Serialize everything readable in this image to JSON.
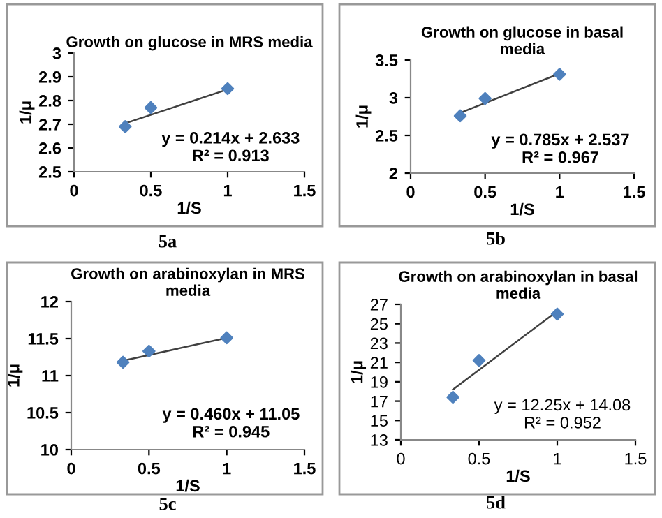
{
  "chart_data": [
    {
      "type": "scatter",
      "title": "Growth on glucose in MRS media",
      "xlabel": "1/S",
      "ylabel": "1/μ",
      "xlim": [
        0,
        1.5
      ],
      "xticks": [
        0,
        0.5,
        1,
        1.5
      ],
      "ylim": [
        2.5,
        3
      ],
      "yticks": [
        2.5,
        2.6,
        2.7,
        2.8,
        2.9,
        3
      ],
      "grid": false,
      "series": [
        {
          "marker": "diamond",
          "color": "#4f81bd",
          "x": [
            0.333,
            0.5,
            1
          ],
          "values": [
            2.69,
            2.77,
            2.85
          ]
        },
        {
          "type": "line",
          "marker": "none",
          "color": "#404040",
          "x": [
            0.333,
            1
          ],
          "values": [
            2.704,
            2.847
          ]
        }
      ],
      "annotations": [
        "y = 0.214x + 2.633\nR² = 0.913",
        "5a"
      ]
    },
    {
      "type": "scatter",
      "title": "Growth on glucose in basal\nmedia",
      "xlabel": "1/S",
      "ylabel": "1/μ",
      "xlim": [
        0,
        1.5
      ],
      "xticks": [
        0,
        0.5,
        1,
        1.5
      ],
      "ylim": [
        2,
        3.5
      ],
      "yticks": [
        2,
        2.5,
        3,
        3.5
      ],
      "grid": false,
      "series": [
        {
          "marker": "diamond",
          "color": "#4f81bd",
          "x": [
            0.333,
            0.5,
            1
          ],
          "values": [
            2.76,
            2.99,
            3.31
          ]
        },
        {
          "type": "line",
          "marker": "none",
          "color": "#404040",
          "x": [
            0.333,
            1
          ],
          "values": [
            2.8,
            3.32
          ]
        }
      ],
      "annotations": [
        "y = 0.785x + 2.537\nR² = 0.967",
        "5b"
      ]
    },
    {
      "type": "scatter",
      "title": "Growth on arabinoxylan in MRS\nmedia",
      "xlabel": "1/S",
      "ylabel": "1/μ",
      "xlim": [
        0,
        1.5
      ],
      "xticks": [
        0,
        0.5,
        1,
        1.5
      ],
      "ylim": [
        10,
        12
      ],
      "yticks": [
        10,
        10.5,
        11,
        11.5,
        12
      ],
      "grid": false,
      "series": [
        {
          "marker": "diamond",
          "color": "#4f81bd",
          "x": [
            0.333,
            0.5,
            1
          ],
          "values": [
            11.18,
            11.33,
            11.51
          ]
        },
        {
          "type": "line",
          "marker": "none",
          "color": "#404040",
          "x": [
            0.333,
            1
          ],
          "values": [
            11.2,
            11.51
          ]
        }
      ],
      "annotations": [
        "y = 0.460x + 11.05\nR² = 0.945",
        "5c"
      ]
    },
    {
      "type": "scatter",
      "title": "Growth on arabinoxylan in basal\nmedia",
      "xlabel": "1/S",
      "ylabel": "1/μ",
      "xlim": [
        0,
        1.5
      ],
      "xticks": [
        0,
        0.5,
        1,
        1.5
      ],
      "ylim": [
        13,
        27
      ],
      "yticks": [
        13,
        15,
        17,
        19,
        21,
        23,
        25,
        27
      ],
      "grid": false,
      "series": [
        {
          "marker": "diamond",
          "color": "#4f81bd",
          "x": [
            0.333,
            0.5,
            1
          ],
          "values": [
            17.4,
            21.2,
            26.0
          ]
        },
        {
          "type": "line",
          "marker": "none",
          "color": "#404040",
          "x": [
            0.333,
            1
          ],
          "values": [
            18.2,
            26.3
          ]
        }
      ],
      "annotations": [
        "y = 12.25x + 14.08\nR² = 0.952",
        "5d"
      ]
    }
  ]
}
